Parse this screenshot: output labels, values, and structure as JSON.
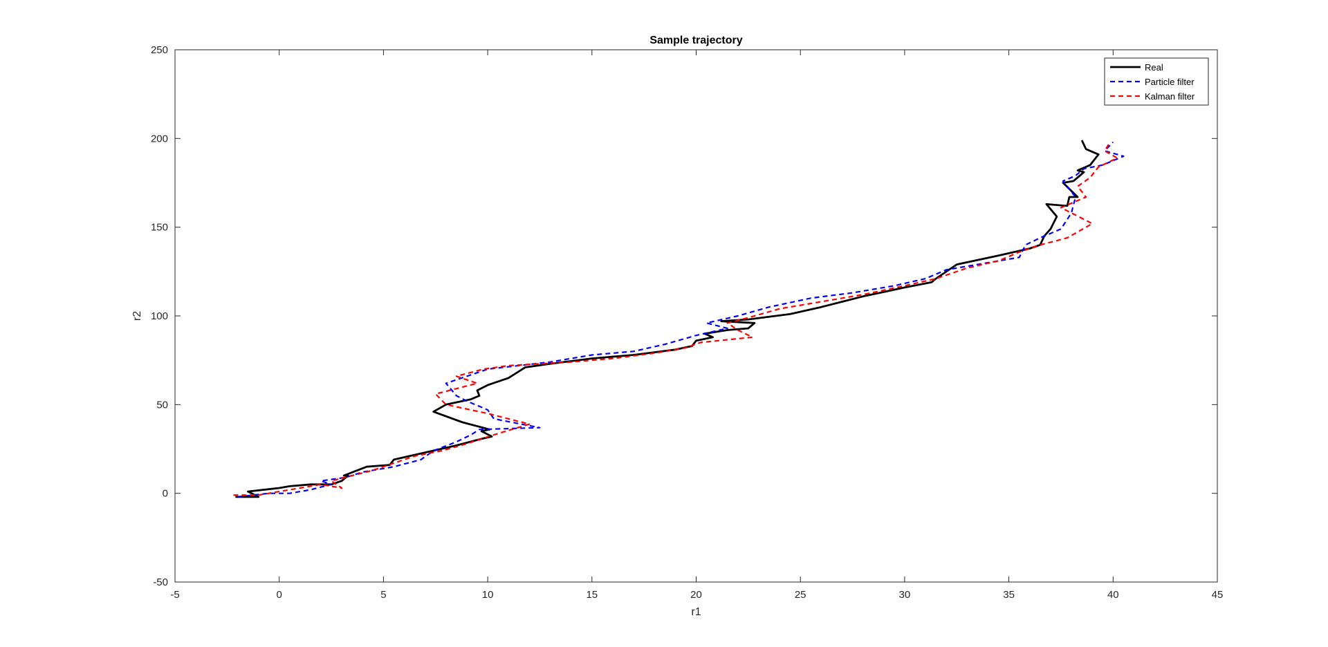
{
  "chart_data": {
    "type": "line",
    "title": "Sample trajectory",
    "xlabel": "r1",
    "ylabel": "r2",
    "xlim": [
      -5,
      45
    ],
    "ylim": [
      -50,
      250
    ],
    "xticks": [
      -5,
      0,
      5,
      10,
      15,
      20,
      25,
      30,
      35,
      40,
      45
    ],
    "yticks": [
      -50,
      0,
      50,
      100,
      150,
      200,
      250
    ],
    "grid": false,
    "legend_position": "top-right",
    "series": [
      {
        "name": "Real",
        "color": "#000000",
        "style": "solid",
        "x": [
          -2.1,
          -1.0,
          -1.5,
          0.0,
          0.5,
          1.5,
          2.5,
          3.0,
          3.3,
          3.1,
          4.2,
          5.3,
          5.5,
          7.0,
          8.5,
          9.8,
          10.2,
          9.7,
          10.1,
          8.8,
          7.4,
          8.0,
          9.2,
          9.6,
          9.5,
          10.0,
          11.0,
          11.8,
          13.0,
          15.0,
          17.0,
          19.0,
          19.8,
          20.0,
          20.8,
          20.4,
          21.5,
          22.5,
          22.8,
          21.2,
          22.5,
          24.5,
          26.0,
          27.0,
          28.0,
          30.0,
          31.3,
          31.5,
          32.5,
          34.5,
          36.0,
          36.5,
          36.7,
          37.0,
          37.3,
          36.8,
          37.8,
          37.9,
          38.3,
          37.6,
          38.1,
          38.6,
          38.3,
          38.9,
          39.3,
          38.7,
          38.5
        ],
        "y": [
          -2,
          -2,
          1,
          3,
          4,
          5,
          5,
          7,
          10,
          10,
          15,
          16,
          19,
          23,
          27,
          31,
          32,
          35,
          36,
          40,
          46,
          50,
          53,
          55,
          58,
          61,
          65,
          71,
          73,
          76,
          78,
          81,
          83,
          86,
          88,
          90,
          92,
          93,
          96,
          97,
          98,
          101,
          105,
          108,
          111,
          116,
          119,
          121,
          129,
          134,
          138,
          140,
          145,
          149,
          156,
          163,
          162,
          167,
          167,
          175,
          176,
          181,
          182,
          185,
          191,
          194,
          199
        ]
      },
      {
        "name": "Particle filter",
        "color": "#0000ff",
        "style": "dashed",
        "x": [
          -2.0,
          -0.5,
          0.5,
          1.5,
          2.5,
          2.0,
          3.2,
          4.0,
          5.5,
          6.8,
          7.4,
          8.5,
          9.2,
          9.6,
          12.5,
          10.3,
          10.0,
          9.0,
          8.5,
          8.0,
          9.0,
          10.0,
          11.5,
          13.0,
          15.0,
          17.0,
          18.5,
          20.0,
          21.5,
          20.5,
          22.0,
          23.5,
          25.5,
          27.5,
          29.5,
          31.0,
          32.0,
          34.0,
          35.5,
          35.8,
          36.5,
          37.5,
          38.0,
          38.2,
          37.6,
          38.2,
          38.6,
          39.5,
          40.5,
          39.6,
          40.0
        ],
        "y": [
          -2,
          0,
          0,
          2,
          5,
          7,
          9,
          12,
          15,
          19,
          24,
          29,
          33,
          36,
          37,
          42,
          47,
          52,
          55,
          62,
          66,
          70,
          72,
          74,
          78,
          80,
          84,
          89,
          93,
          96,
          100,
          105,
          110,
          113,
          117,
          121,
          126,
          130,
          133,
          140,
          144,
          149,
          158,
          167,
          176,
          179,
          183,
          185,
          190,
          193,
          198
        ]
      },
      {
        "name": "Kalman filter",
        "color": "#ff0000",
        "style": "dashed",
        "x": [
          -2.2,
          -1.0,
          0.0,
          1.0,
          2.0,
          3.0,
          2.5,
          3.5,
          4.5,
          5.5,
          6.5,
          7.8,
          9.0,
          10.3,
          12.0,
          10.0,
          8.0,
          7.5,
          9.5,
          8.5,
          9.8,
          11.0,
          12.5,
          14.0,
          16.0,
          18.0,
          19.5,
          20.2,
          22.7,
          22.0,
          21.5,
          22.5,
          24.0,
          26.0,
          28.0,
          30.0,
          31.5,
          33.0,
          34.5,
          35.5,
          36.5,
          37.8,
          39.0,
          37.5,
          38.7,
          38.3,
          38.9,
          39.3,
          40.2,
          39.6,
          39.8
        ],
        "y": [
          -1,
          -1,
          1,
          3,
          5,
          3,
          7,
          10,
          13,
          17,
          21,
          24,
          28,
          33,
          39,
          45,
          50,
          56,
          62,
          66,
          70,
          72,
          73,
          74,
          76,
          79,
          82,
          85,
          88,
          92,
          96,
          99,
          104,
          108,
          112,
          117,
          121,
          127,
          131,
          136,
          140,
          144,
          152,
          161,
          167,
          173,
          178,
          184,
          189,
          193,
          197
        ]
      }
    ]
  }
}
